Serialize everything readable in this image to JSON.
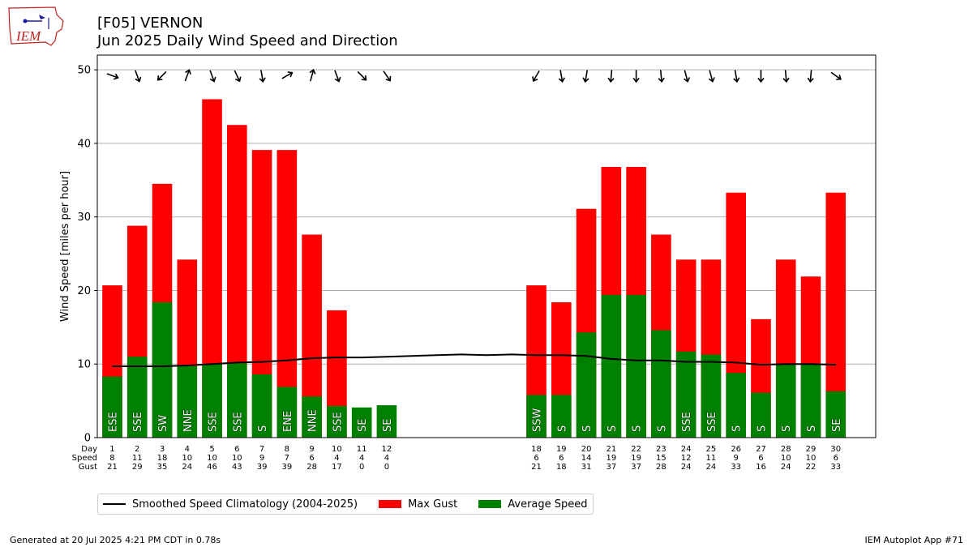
{
  "header": {
    "title_line1": "[F05] VERNON",
    "title_line2": "Jun 2025 Daily Wind Speed and Direction",
    "logo_text": "IEM"
  },
  "footer": {
    "generated": "Generated at 20 Jul 2025 4:21 PM CDT in 0.78s",
    "app": "IEM Autoplot App #71"
  },
  "colors": {
    "gust": "#ff0000",
    "avg": "#008000",
    "climo": "#000000",
    "grid": "#b0b0b0",
    "logo_accent": "#c02020",
    "logo_blue": "#1a1aa0"
  },
  "legend": [
    {
      "label": "Smoothed Speed Climatology (2004-2025)",
      "kind": "line",
      "color": "#000000"
    },
    {
      "label": "Max Gust",
      "kind": "box",
      "color": "#ff0000"
    },
    {
      "label": "Average Speed",
      "kind": "box",
      "color": "#008000"
    }
  ],
  "chart_data": {
    "type": "bar",
    "ylabel": "Wind Speed [miles per hour]",
    "ylim": [
      0,
      52
    ],
    "yticks": [
      0,
      10,
      20,
      30,
      40,
      50
    ],
    "xlim": [
      0.4,
      31.6
    ],
    "grid": "horizontal",
    "row_labels": [
      "Day",
      "Speed",
      "Gust"
    ],
    "days": [
      {
        "day": 1,
        "speed_label": "8",
        "gust_label": "21",
        "avg": 8.3,
        "gust": 20.7,
        "dir": "ESE",
        "arrow_deg": 110
      },
      {
        "day": 2,
        "speed_label": "11",
        "gust_label": "29",
        "avg": 11.0,
        "gust": 28.8,
        "dir": "SSE",
        "arrow_deg": 160
      },
      {
        "day": 3,
        "speed_label": "18",
        "gust_label": "35",
        "avg": 18.4,
        "gust": 34.5,
        "dir": "SW",
        "arrow_deg": 225
      },
      {
        "day": 4,
        "speed_label": "10",
        "gust_label": "24",
        "avg": 9.7,
        "gust": 24.2,
        "dir": "NNE",
        "arrow_deg": 20
      },
      {
        "day": 5,
        "speed_label": "10",
        "gust_label": "46",
        "avg": 10.0,
        "gust": 46.0,
        "dir": "SSE",
        "arrow_deg": 160
      },
      {
        "day": 6,
        "speed_label": "10",
        "gust_label": "43",
        "avg": 10.1,
        "gust": 42.5,
        "dir": "SSE",
        "arrow_deg": 155
      },
      {
        "day": 7,
        "speed_label": "9",
        "gust_label": "39",
        "avg": 8.6,
        "gust": 39.1,
        "dir": "S",
        "arrow_deg": 170
      },
      {
        "day": 8,
        "speed_label": "7",
        "gust_label": "39",
        "avg": 6.9,
        "gust": 39.1,
        "dir": "ENE",
        "arrow_deg": 60
      },
      {
        "day": 9,
        "speed_label": "6",
        "gust_label": "28",
        "avg": 5.6,
        "gust": 27.6,
        "dir": "NNE",
        "arrow_deg": 15
      },
      {
        "day": 10,
        "speed_label": "4",
        "gust_label": "17",
        "avg": 4.3,
        "gust": 17.3,
        "dir": "SSE",
        "arrow_deg": 160
      },
      {
        "day": 11,
        "speed_label": "4",
        "gust_label": "0",
        "avg": 4.1,
        "gust": 0,
        "dir": "SE",
        "arrow_deg": 135
      },
      {
        "day": 12,
        "speed_label": "4",
        "gust_label": "0",
        "avg": 4.4,
        "gust": 0,
        "dir": "SE",
        "arrow_deg": 145
      },
      {
        "day": 18,
        "speed_label": "6",
        "gust_label": "21",
        "avg": 5.8,
        "gust": 20.7,
        "dir": "SSW",
        "arrow_deg": 210
      },
      {
        "day": 19,
        "speed_label": "6",
        "gust_label": "18",
        "avg": 5.8,
        "gust": 18.4,
        "dir": "S",
        "arrow_deg": 170
      },
      {
        "day": 20,
        "speed_label": "14",
        "gust_label": "31",
        "avg": 14.3,
        "gust": 31.1,
        "dir": "S",
        "arrow_deg": 190
      },
      {
        "day": 21,
        "speed_label": "19",
        "gust_label": "37",
        "avg": 19.4,
        "gust": 36.8,
        "dir": "S",
        "arrow_deg": 185
      },
      {
        "day": 22,
        "speed_label": "19",
        "gust_label": "37",
        "avg": 19.4,
        "gust": 36.8,
        "dir": "S",
        "arrow_deg": 180
      },
      {
        "day": 23,
        "speed_label": "15",
        "gust_label": "28",
        "avg": 14.6,
        "gust": 27.6,
        "dir": "S",
        "arrow_deg": 175
      },
      {
        "day": 24,
        "speed_label": "12",
        "gust_label": "24",
        "avg": 11.7,
        "gust": 24.2,
        "dir": "SSE",
        "arrow_deg": 165
      },
      {
        "day": 25,
        "speed_label": "11",
        "gust_label": "24",
        "avg": 11.3,
        "gust": 24.2,
        "dir": "SSE",
        "arrow_deg": 165
      },
      {
        "day": 26,
        "speed_label": "9",
        "gust_label": "33",
        "avg": 8.8,
        "gust": 33.3,
        "dir": "S",
        "arrow_deg": 170
      },
      {
        "day": 27,
        "speed_label": "6",
        "gust_label": "16",
        "avg": 6.1,
        "gust": 16.1,
        "dir": "S",
        "arrow_deg": 180
      },
      {
        "day": 28,
        "speed_label": "10",
        "gust_label": "24",
        "avg": 9.9,
        "gust": 24.2,
        "dir": "S",
        "arrow_deg": 175
      },
      {
        "day": 29,
        "speed_label": "10",
        "gust_label": "22",
        "avg": 10.0,
        "gust": 21.9,
        "dir": "S",
        "arrow_deg": 185
      },
      {
        "day": 30,
        "speed_label": "6",
        "gust_label": "33",
        "avg": 6.3,
        "gust": 33.3,
        "dir": "SE",
        "arrow_deg": 125
      }
    ],
    "climatology": {
      "name": "Smoothed Speed Climatology (2004-2025)",
      "x": [
        1,
        2,
        3,
        4,
        5,
        6,
        7,
        8,
        9,
        10,
        11,
        12,
        13,
        14,
        15,
        16,
        17,
        18,
        19,
        20,
        21,
        22,
        23,
        24,
        25,
        26,
        27,
        28,
        29,
        30
      ],
      "y": [
        9.7,
        9.7,
        9.7,
        9.8,
        10.0,
        10.2,
        10.3,
        10.5,
        10.8,
        10.9,
        10.9,
        11.0,
        11.1,
        11.2,
        11.3,
        11.2,
        11.3,
        11.2,
        11.2,
        11.1,
        10.7,
        10.5,
        10.5,
        10.3,
        10.3,
        10.2,
        9.9,
        10.0,
        10.0,
        9.9
      ]
    }
  }
}
